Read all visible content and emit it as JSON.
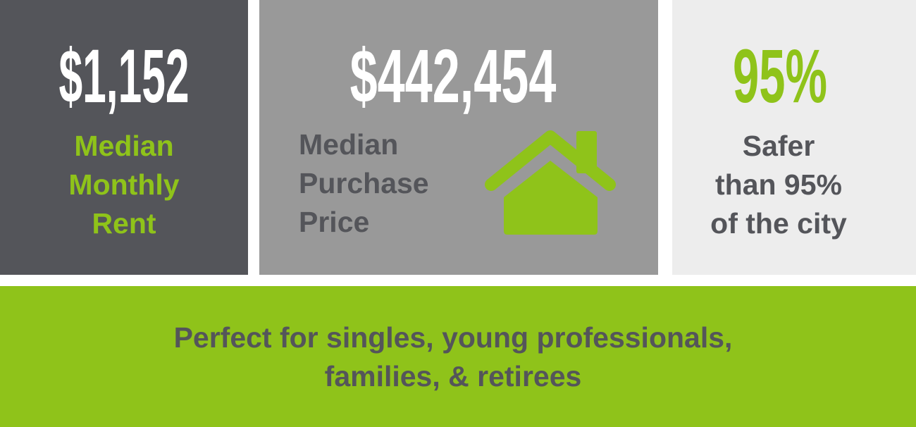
{
  "rent": {
    "value": "$1,152",
    "label": [
      "Median",
      "Monthly",
      "Rent"
    ]
  },
  "purchase": {
    "value": "$442,454",
    "label": [
      "Median",
      "Purchase",
      "Price"
    ],
    "icon": "house-icon"
  },
  "safety": {
    "value": "95%",
    "label": [
      "Safer",
      "than 95%",
      "of the city"
    ]
  },
  "tagline": [
    "Perfect for singles, young professionals,",
    "families, & retirees"
  ],
  "colors": {
    "dark": "#54555a",
    "mid": "#999999",
    "light": "#ededed",
    "accent": "#8fc31a"
  }
}
